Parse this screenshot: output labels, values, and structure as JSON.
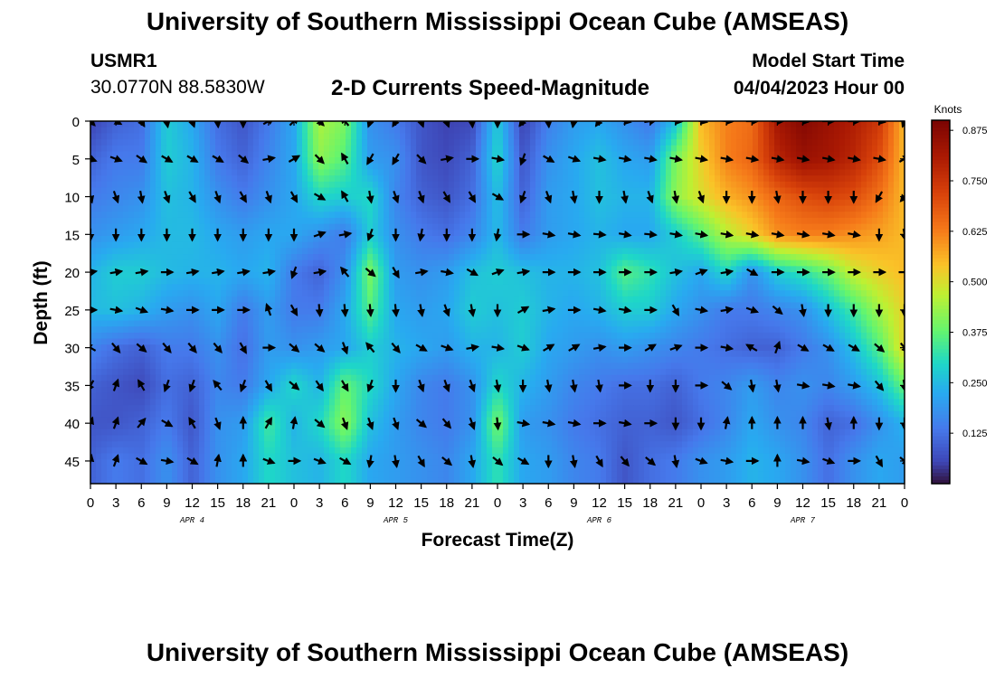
{
  "header": {
    "title": "University of Southern Mississippi Ocean Cube (AMSEAS)",
    "station_id": "USMR1",
    "station_coords": "30.0770N  88.5830W",
    "subtitle": "2-D Currents Speed-Magnitude",
    "start_label": "Model Start Time",
    "start_value": "04/04/2023 Hour 00"
  },
  "footer": {
    "title": "University of Southern Mississippi Ocean Cube (AMSEAS)"
  },
  "chart_data": {
    "type": "heatmap",
    "title": "2-D Currents Speed-Magnitude",
    "xlabel": "Forecast Time(Z)",
    "ylabel": "Depth (ft)",
    "x_unit": "hours",
    "xlim": [
      0,
      96
    ],
    "ylim": [
      0,
      48
    ],
    "x_tick_values": [
      0,
      3,
      6,
      9,
      12,
      15,
      18,
      21,
      24,
      27,
      30,
      33,
      36,
      39,
      42,
      45,
      48,
      51,
      54,
      57,
      60,
      63,
      66,
      69,
      72,
      75,
      78,
      81,
      84,
      87,
      90,
      93,
      96
    ],
    "x_tick_labels": [
      "0",
      "3",
      "6",
      "9",
      "12",
      "15",
      "18",
      "21",
      "0",
      "3",
      "6",
      "9",
      "12",
      "15",
      "18",
      "21",
      "0",
      "3",
      "6",
      "9",
      "12",
      "15",
      "18",
      "21",
      "0",
      "3",
      "6",
      "9",
      "12",
      "15",
      "18",
      "21",
      "0"
    ],
    "date_labels": [
      {
        "hour": 12,
        "text": "APR 4"
      },
      {
        "hour": 36,
        "text": "APR 5"
      },
      {
        "hour": 60,
        "text": "APR 6"
      },
      {
        "hour": 84,
        "text": "APR 7"
      }
    ],
    "y_ticks": [
      0,
      5,
      10,
      15,
      20,
      25,
      30,
      35,
      40,
      45
    ],
    "colorbar": {
      "unit": "Knots",
      "min": 0.0,
      "max": 0.9,
      "ticks": [
        0.125,
        0.25,
        0.375,
        0.5,
        0.625,
        0.75,
        0.875
      ],
      "tick_labels": [
        "0.125",
        "0.250",
        "0.375",
        "0.500",
        "0.625",
        "0.750",
        "0.875"
      ]
    },
    "grid_hours": [
      0,
      3,
      6,
      9,
      12,
      15,
      18,
      21,
      24,
      27,
      30,
      33,
      36,
      39,
      42,
      45,
      48,
      51,
      54,
      57,
      60,
      63,
      66,
      69,
      72,
      75,
      78,
      81,
      84,
      87,
      90,
      93,
      96
    ],
    "grid_depths": [
      0,
      5,
      10,
      15,
      20,
      25,
      30,
      35,
      40,
      45
    ],
    "speed_knots": [
      [
        0.05,
        0.1,
        0.12,
        0.28,
        0.22,
        0.12,
        0.08,
        0.14,
        0.22,
        0.45,
        0.4,
        0.18,
        0.14,
        0.08,
        0.05,
        0.06,
        0.28,
        0.05,
        0.15,
        0.2,
        0.22,
        0.18,
        0.14,
        0.26,
        0.55,
        0.62,
        0.65,
        0.82,
        0.88,
        0.84,
        0.8,
        0.74,
        0.55
      ],
      [
        0.1,
        0.14,
        0.14,
        0.28,
        0.24,
        0.14,
        0.1,
        0.16,
        0.22,
        0.42,
        0.36,
        0.2,
        0.18,
        0.08,
        0.06,
        0.1,
        0.3,
        0.08,
        0.18,
        0.22,
        0.26,
        0.22,
        0.2,
        0.4,
        0.52,
        0.62,
        0.66,
        0.78,
        0.84,
        0.82,
        0.78,
        0.7,
        0.55
      ],
      [
        0.14,
        0.16,
        0.18,
        0.26,
        0.24,
        0.18,
        0.14,
        0.18,
        0.22,
        0.3,
        0.28,
        0.3,
        0.16,
        0.1,
        0.08,
        0.12,
        0.26,
        0.1,
        0.2,
        0.22,
        0.26,
        0.24,
        0.24,
        0.42,
        0.5,
        0.56,
        0.6,
        0.66,
        0.7,
        0.72,
        0.7,
        0.64,
        0.55
      ],
      [
        0.18,
        0.2,
        0.22,
        0.25,
        0.25,
        0.22,
        0.2,
        0.22,
        0.22,
        0.18,
        0.14,
        0.28,
        0.18,
        0.14,
        0.12,
        0.16,
        0.25,
        0.14,
        0.2,
        0.22,
        0.24,
        0.22,
        0.22,
        0.28,
        0.36,
        0.46,
        0.52,
        0.6,
        0.62,
        0.62,
        0.6,
        0.58,
        0.55
      ],
      [
        0.24,
        0.28,
        0.28,
        0.25,
        0.24,
        0.24,
        0.22,
        0.24,
        0.14,
        0.1,
        0.18,
        0.4,
        0.2,
        0.18,
        0.2,
        0.26,
        0.28,
        0.26,
        0.24,
        0.24,
        0.26,
        0.36,
        0.32,
        0.26,
        0.22,
        0.3,
        0.18,
        0.28,
        0.32,
        0.38,
        0.48,
        0.52,
        0.55
      ],
      [
        0.25,
        0.26,
        0.24,
        0.2,
        0.18,
        0.22,
        0.14,
        0.2,
        0.14,
        0.14,
        0.22,
        0.36,
        0.22,
        0.2,
        0.22,
        0.28,
        0.26,
        0.28,
        0.24,
        0.22,
        0.24,
        0.28,
        0.28,
        0.22,
        0.18,
        0.14,
        0.14,
        0.16,
        0.18,
        0.26,
        0.34,
        0.44,
        0.52
      ],
      [
        0.16,
        0.12,
        0.1,
        0.14,
        0.14,
        0.18,
        0.12,
        0.2,
        0.18,
        0.2,
        0.22,
        0.28,
        0.24,
        0.22,
        0.2,
        0.24,
        0.24,
        0.28,
        0.22,
        0.2,
        0.18,
        0.2,
        0.18,
        0.16,
        0.14,
        0.12,
        0.1,
        0.1,
        0.14,
        0.18,
        0.26,
        0.36,
        0.52
      ],
      [
        0.1,
        0.08,
        0.06,
        0.12,
        0.1,
        0.16,
        0.14,
        0.22,
        0.3,
        0.24,
        0.38,
        0.3,
        0.22,
        0.16,
        0.14,
        0.18,
        0.3,
        0.24,
        0.2,
        0.16,
        0.14,
        0.12,
        0.12,
        0.1,
        0.14,
        0.16,
        0.2,
        0.16,
        0.18,
        0.16,
        0.2,
        0.26,
        0.38
      ],
      [
        0.08,
        0.08,
        0.1,
        0.14,
        0.08,
        0.18,
        0.2,
        0.34,
        0.24,
        0.3,
        0.42,
        0.26,
        0.2,
        0.16,
        0.14,
        0.18,
        0.4,
        0.2,
        0.18,
        0.14,
        0.12,
        0.1,
        0.1,
        0.08,
        0.12,
        0.16,
        0.22,
        0.18,
        0.16,
        0.1,
        0.12,
        0.18,
        0.24
      ],
      [
        0.1,
        0.14,
        0.12,
        0.18,
        0.1,
        0.18,
        0.22,
        0.3,
        0.26,
        0.24,
        0.3,
        0.22,
        0.2,
        0.18,
        0.16,
        0.22,
        0.32,
        0.22,
        0.2,
        0.16,
        0.14,
        0.08,
        0.12,
        0.14,
        0.18,
        0.2,
        0.24,
        0.22,
        0.18,
        0.12,
        0.18,
        0.22,
        0.2
      ]
    ],
    "direction_deg": [
      [
        135,
        120,
        150,
        170,
        160,
        175,
        180,
        60,
        45,
        135,
        320,
        200,
        210,
        160,
        160,
        175,
        180,
        215,
        175,
        190,
        215,
        100,
        80,
        95,
        100,
        95,
        90,
        90,
        95,
        90,
        90,
        100,
        200
      ],
      [
        110,
        110,
        125,
        120,
        120,
        120,
        130,
        80,
        60,
        135,
        330,
        210,
        210,
        135,
        80,
        90,
        100,
        200,
        120,
        110,
        100,
        100,
        100,
        100,
        100,
        100,
        100,
        100,
        100,
        100,
        100,
        100,
        60
      ],
      [
        165,
        160,
        170,
        160,
        150,
        160,
        150,
        160,
        150,
        120,
        330,
        170,
        160,
        160,
        150,
        150,
        120,
        200,
        160,
        170,
        180,
        170,
        160,
        170,
        160,
        180,
        180,
        170,
        180,
        180,
        180,
        210,
        220
      ],
      [
        180,
        180,
        180,
        180,
        180,
        180,
        180,
        180,
        180,
        70,
        80,
        200,
        180,
        190,
        180,
        180,
        190,
        90,
        100,
        100,
        95,
        100,
        95,
        100,
        100,
        100,
        100,
        100,
        100,
        100,
        100,
        180,
        170
      ],
      [
        80,
        80,
        80,
        90,
        80,
        80,
        80,
        80,
        200,
        80,
        320,
        130,
        150,
        80,
        100,
        120,
        70,
        80,
        90,
        90,
        90,
        90,
        90,
        80,
        70,
        80,
        120,
        90,
        90,
        90,
        90,
        90,
        90
      ],
      [
        90,
        100,
        110,
        100,
        90,
        90,
        90,
        340,
        150,
        175,
        175,
        175,
        175,
        170,
        160,
        170,
        180,
        60,
        80,
        90,
        100,
        100,
        90,
        150,
        100,
        80,
        110,
        130,
        170,
        180,
        180,
        180,
        180
      ],
      [
        300,
        140,
        130,
        140,
        140,
        140,
        150,
        90,
        130,
        130,
        160,
        320,
        140,
        120,
        110,
        80,
        100,
        110,
        60,
        60,
        80,
        90,
        60,
        70,
        90,
        100,
        300,
        20,
        120,
        120,
        120,
        130,
        140
      ],
      [
        210,
        20,
        330,
        200,
        200,
        320,
        200,
        150,
        130,
        145,
        150,
        200,
        180,
        160,
        160,
        160,
        170,
        180,
        170,
        170,
        170,
        90,
        180,
        180,
        90,
        130,
        170,
        170,
        100,
        100,
        100,
        140,
        170
      ],
      [
        20,
        20,
        40,
        120,
        330,
        160,
        0,
        30,
        10,
        130,
        160,
        160,
        160,
        130,
        140,
        160,
        175,
        100,
        100,
        100,
        90,
        100,
        90,
        180,
        180,
        10,
        0,
        0,
        0,
        170,
        0,
        180,
        180
      ],
      [
        10,
        20,
        120,
        100,
        120,
        10,
        0,
        110,
        90,
        110,
        120,
        190,
        170,
        150,
        130,
        170,
        130,
        120,
        180,
        170,
        150,
        140,
        130,
        170,
        110,
        100,
        90,
        0,
        100,
        110,
        90,
        150,
        130
      ]
    ]
  }
}
